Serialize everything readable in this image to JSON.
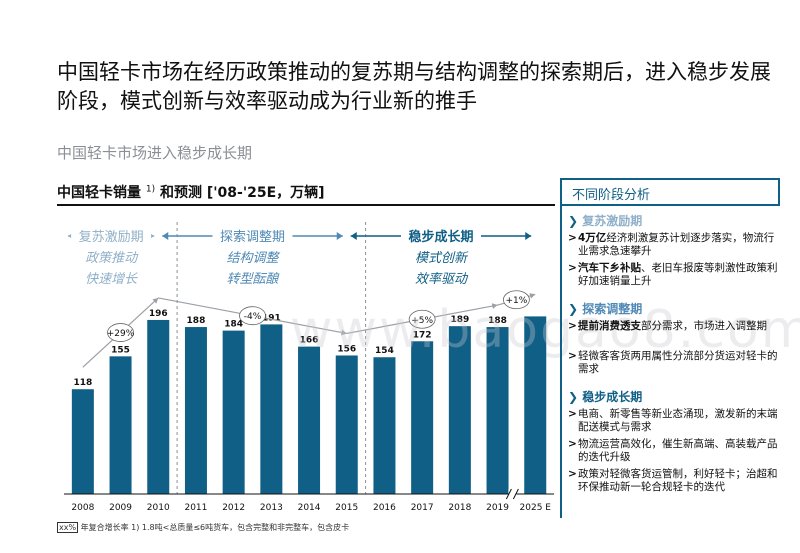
{
  "title": "中国轻卡市场在经历政策推动的复苏期与结构调整的探索期后，进入稳步发展阶段，模式创新与效率驱动成为行业新的推手",
  "subtitle": "中国轻卡市场进入稳步成长期",
  "chart_heading": {
    "prefix": "中国轻卡销量",
    "sup": "1)",
    "suffix": "和预测 ['08-'25E，万辆]"
  },
  "colors": {
    "bar": "#0f5f86",
    "accent": "#0f5f86",
    "phase1": "#8fb0c9",
    "phase2": "#4f89b5",
    "phase3": "#0f5f86"
  },
  "chart_data": {
    "type": "bar",
    "categories": [
      "2008",
      "2009",
      "2010",
      "2011",
      "2012",
      "2013",
      "2014",
      "2015",
      "2016",
      "2017",
      "2018",
      "2019",
      "2025 E"
    ],
    "values": [
      118,
      155,
      196,
      188,
      184,
      191,
      166,
      156,
      154,
      172,
      189,
      188,
      200
    ],
    "ylim": [
      0,
      210
    ],
    "axis_break_after": "2019",
    "phases": [
      {
        "label": "复苏激励期",
        "line1": "政策推动",
        "line2": "快速增长",
        "from": "2008",
        "to": "2010",
        "cagr": "+29%"
      },
      {
        "label": "探索调整期",
        "line1": "结构调整",
        "line2": "转型酝酿",
        "from": "2011",
        "to": "2015",
        "cagr": "-4%"
      },
      {
        "label": "稳步成长期",
        "line1": "模式创新",
        "line2": "效率驱动",
        "from": "2016",
        "to": "2025 E",
        "cagr": "+5%",
        "cagr2": "+1%"
      }
    ]
  },
  "footnote": {
    "boxed": "xx%",
    "text": "年复合增长率   1) 1.8吨<总质量≤6吨货车，包含完整和非完整车，包含皮卡"
  },
  "watermark": "www.baogao8.com",
  "side_panel": {
    "header": "不同阶段分析",
    "stages": [
      {
        "title": "复苏激励期",
        "bullets": [
          {
            "bold": "4万亿",
            "text": "经济刺激复苏计划逐步落实，物流行业需求急速攀升"
          },
          {
            "bold": "汽车下乡补贴",
            "text": "、老旧车报废等刺激性政策利好加速销量上升"
          }
        ]
      },
      {
        "title": "探索调整期",
        "bullets": [
          {
            "bold": "提前消费透支",
            "text": "部分需求，市场进入调整期"
          },
          {
            "bold": "",
            "text": "轻微客客货两用属性分流部分货运对轻卡的需求"
          }
        ]
      },
      {
        "title": "稳步成长期",
        "bullets": [
          {
            "bold": "",
            "text": "电商、新零售等新业态涌现，激发新的末端配送模式与需求"
          },
          {
            "bold": "",
            "text": "物流运营高效化，催生新高端、高装载产品的迭代升级"
          },
          {
            "bold": "",
            "text": "政策对轻微客货运管制，利好轻卡；治超和环保推动新一轮合规轻卡的迭代"
          }
        ]
      }
    ]
  }
}
